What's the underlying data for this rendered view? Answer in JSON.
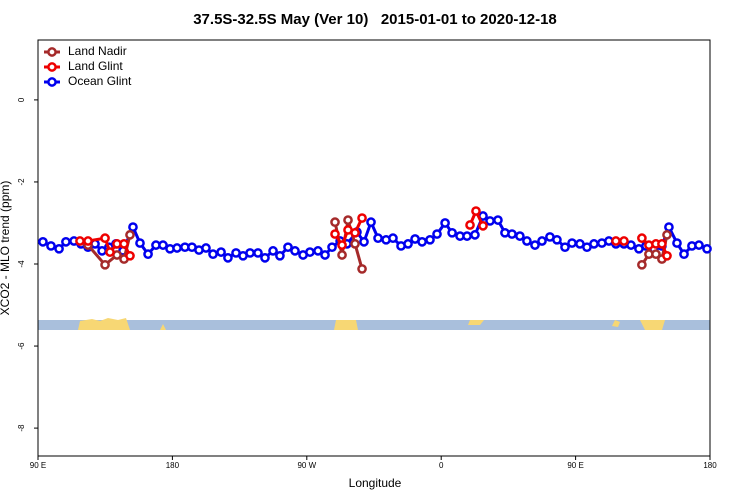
{
  "chart_data": {
    "type": "line",
    "title": "37.5S-32.5S May (Ver 10)   2015-01-01 to 2020-12-18",
    "xlabel": "Longitude",
    "ylabel": "XCO2 - MLO trend (ppm)",
    "xlim": [
      90,
      540
    ],
    "ylim": [
      -8.68,
      1.46
    ],
    "xticks": [
      {
        "value": 90,
        "label": "90 E"
      },
      180,
      {
        "value": 270,
        "label": "90 W"
      },
      {
        "value": 360,
        "label": "0"
      },
      {
        "value": 450,
        "label": "90 E"
      },
      {
        "value": 540,
        "label": "180"
      }
    ],
    "yticks": [
      0,
      -2,
      -4,
      -6,
      -8
    ],
    "legend": "top-left",
    "series": [
      {
        "name": "Land Nadir",
        "color": "#a52a2a",
        "x": [
          123.5,
          134.9,
          142.9,
          147.6,
          151.6,
          240,
          288.9,
          293.6,
          297.6,
          302.3,
          307.0,
          400,
          494.4,
          499.1,
          503.8,
          507.8,
          511.2
        ],
        "values": [
          -3.54,
          -4.02,
          -3.78,
          -3.88,
          -3.29,
          null,
          -2.98,
          -3.78,
          -2.93,
          -3.51,
          -4.12,
          null,
          -4.02,
          -3.76,
          -3.76,
          -3.88,
          -3.29
        ]
      },
      {
        "name": "Land Glint",
        "color": "#ee0000",
        "x": [
          118.1,
          123.5,
          134.9,
          138.2,
          142.9,
          147.6,
          151.6,
          240,
          288.9,
          293.6,
          297.6,
          302.3,
          307.0,
          340,
          379.3,
          383.3,
          388.0,
          450,
          477.0,
          482.4,
          490,
          494.4,
          499.1,
          503.8,
          507.8,
          511.2
        ],
        "values": [
          -3.44,
          -3.44,
          -3.37,
          -3.71,
          -3.51,
          -3.51,
          -3.8,
          null,
          -3.27,
          -3.54,
          -3.17,
          -3.24,
          -2.88,
          null,
          -3.05,
          -2.71,
          -3.07,
          null,
          -3.44,
          -3.44,
          null,
          -3.37,
          -3.54,
          -3.51,
          -3.51,
          -3.8
        ]
      },
      {
        "name": "Ocean Glint",
        "color": "#0000ee",
        "x": [
          93.3,
          98.7,
          104.1,
          108.7,
          114.1,
          118.8,
          123.5,
          128.2,
          132.9,
          137.5,
          142.2,
          146.9,
          153.6,
          158.3,
          163.7,
          169.0,
          173.7,
          178.4,
          183.1,
          188.4,
          193.1,
          197.8,
          202.5,
          207.2,
          212.6,
          217.2,
          222.6,
          227.3,
          232.0,
          237.3,
          242.0,
          247.4,
          252.0,
          257.4,
          262.1,
          267.5,
          272.1,
          277.5,
          282.2,
          286.9,
          292.3,
          296.9,
          303.6,
          308.3,
          313.0,
          317.7,
          323.1,
          327.7,
          333.1,
          337.8,
          342.5,
          347.2,
          352.5,
          357.2,
          362.6,
          367.3,
          372.6,
          377.3,
          382.6,
          388.0,
          392.7,
          398.0,
          402.7,
          407.4,
          412.7,
          417.4,
          422.8,
          427.5,
          432.8,
          437.5,
          442.9,
          447.6,
          452.9,
          457.6,
          462.3,
          467.6,
          472.3,
          477.0,
          482.4,
          487.1,
          492.4,
          497.1,
          502.5,
          507.8,
          512.5,
          517.9,
          522.6,
          527.9,
          532.6,
          538.0
        ],
        "values": [
          -3.46,
          -3.56,
          -3.63,
          -3.46,
          -3.44,
          -3.51,
          -3.59,
          -3.51,
          -3.68,
          -3.59,
          -3.51,
          -3.68,
          -3.1,
          -3.49,
          -3.76,
          -3.54,
          -3.54,
          -3.63,
          -3.61,
          -3.59,
          -3.59,
          -3.66,
          -3.61,
          -3.76,
          -3.71,
          -3.85,
          -3.73,
          -3.8,
          -3.73,
          -3.73,
          -3.85,
          -3.68,
          -3.8,
          -3.59,
          -3.68,
          -3.78,
          -3.71,
          -3.68,
          -3.78,
          -3.59,
          -3.44,
          -3.51,
          -3.22,
          -3.46,
          -2.98,
          -3.37,
          -3.41,
          -3.37,
          -3.56,
          -3.51,
          -3.39,
          -3.46,
          -3.41,
          -3.27,
          -3.0,
          -3.24,
          -3.32,
          -3.32,
          -3.29,
          -2.83,
          -2.95,
          -2.93,
          -3.24,
          -3.27,
          -3.32,
          -3.44,
          -3.54,
          -3.44,
          -3.34,
          -3.41,
          -3.59,
          -3.49,
          -3.51,
          -3.59,
          -3.51,
          -3.49,
          -3.44,
          -3.51,
          -3.51,
          -3.54,
          -3.63,
          -3.56,
          -3.63,
          -3.56,
          -3.1,
          -3.49,
          -3.76,
          -3.56,
          -3.54,
          -3.63
        ]
      }
    ]
  }
}
